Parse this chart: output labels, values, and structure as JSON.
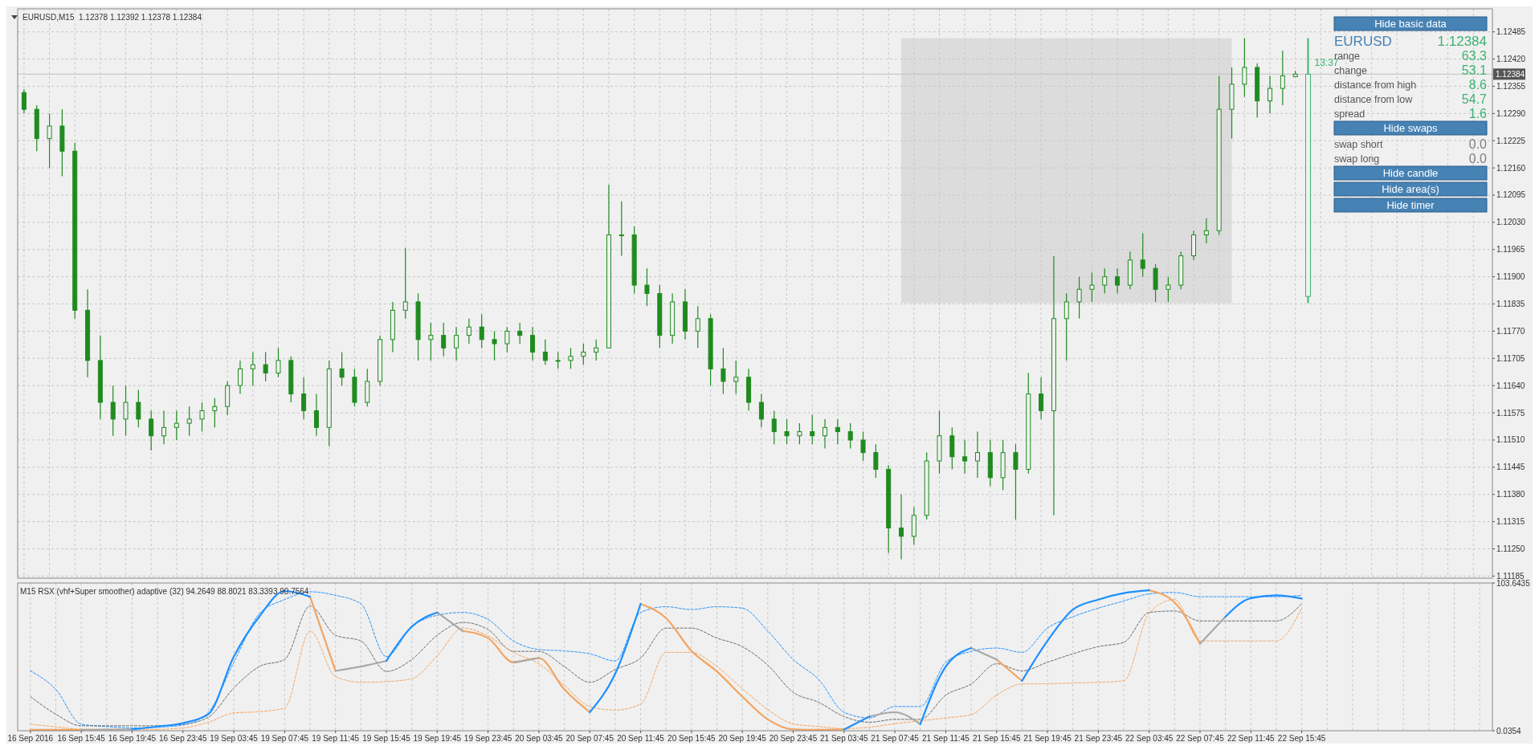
{
  "chart_data": [
    {
      "type": "candlestick",
      "title": "EURUSD,M15  1.12378 1.12392 1.12378 1.12384",
      "categories": [
        null,
        null,
        null,
        null,
        null,
        null,
        null,
        null,
        null,
        null,
        null,
        null,
        null,
        null,
        null,
        null,
        null,
        null,
        null,
        null,
        null,
        null,
        null,
        null,
        null,
        null,
        null,
        null,
        null,
        null,
        null,
        null,
        null,
        null,
        null,
        null,
        null,
        null,
        null,
        null,
        null,
        null,
        null,
        null,
        null,
        null,
        null,
        null,
        null,
        null,
        null,
        null,
        null,
        null,
        null,
        null,
        null,
        null,
        null,
        null,
        null,
        null,
        null,
        null,
        null,
        null,
        null,
        null,
        null,
        null,
        null,
        null,
        null,
        null,
        null,
        null,
        null,
        null,
        null,
        null,
        null,
        null,
        null,
        null,
        null,
        null,
        null,
        null,
        null,
        null,
        null,
        null,
        null,
        null,
        null,
        null,
        null,
        null,
        null,
        null,
        null,
        null,
        null,
        null,
        null,
        null,
        null,
        null,
        null,
        null,
        null,
        null,
        null,
        null,
        null,
        null
      ],
      "ylim": [
        1.1118,
        1.1254
      ],
      "yticks": [
        {
          "value": 1.11185,
          "label": "1.11185"
        },
        {
          "value": 1.1125,
          "label": "1.11250"
        },
        1.11315,
        {
          "value": 1.1138,
          "label": "1.11380"
        },
        1.11445,
        {
          "value": 1.1151,
          "label": "1.11510"
        },
        1.11575,
        {
          "value": 1.1164,
          "label": "1.11640"
        },
        1.11705,
        {
          "value": 1.1177,
          "label": "1.11770"
        },
        1.11835,
        {
          "value": 1.119,
          "label": "1.11900"
        },
        1.11965,
        {
          "value": 1.1203,
          "label": "1.12030"
        },
        1.12095,
        {
          "value": 1.1216,
          "label": "1.12160"
        },
        1.12225,
        {
          "value": 1.1229,
          "label": "1.12290"
        },
        1.12355,
        {
          "value": 1.1242,
          "label": "1.12420"
        },
        1.12485
      ],
      "grid": true,
      "tick_labels": "y",
      "ref_lines": [
        {
          "axis": "y",
          "value": 1.12384,
          "label": "1.12384",
          "color": "#c0c0c0"
        }
      ],
      "bands": [
        {
          "axis": "y",
          "from": 1.11837,
          "to": 1.1247,
          "color": "#dcdcdc"
        }
      ],
      "annotations": [
        "13:37"
      ],
      "series": [
        {
          "color": "#1f8b1f",
          "ohlc": [
            [
              1.1234,
              1.12348,
              1.1229,
              1.123
            ],
            [
              1.123,
              1.1231,
              1.122,
              1.1223
            ],
            [
              1.1223,
              1.1229,
              1.1216,
              1.1226
            ],
            [
              1.1226,
              1.123,
              1.1214,
              1.122
            ],
            [
              1.122,
              1.1222,
              1.118,
              1.1182
            ],
            [
              1.1182,
              1.1187,
              1.1166,
              1.117
            ],
            [
              1.117,
              1.1176,
              1.1156,
              1.116
            ],
            [
              1.116,
              1.1164,
              1.1152,
              1.1156
            ],
            [
              1.1156,
              1.1164,
              1.1152,
              1.116
            ],
            [
              1.116,
              1.1163,
              1.1154,
              1.1156
            ],
            [
              1.1156,
              1.1158,
              1.11485,
              1.1152
            ],
            [
              1.1152,
              1.1158,
              1.115,
              1.1154
            ],
            [
              1.1154,
              1.1158,
              1.1151,
              1.1155
            ],
            [
              1.1155,
              1.1159,
              1.1152,
              1.1156
            ],
            [
              1.1156,
              1.116,
              1.1153,
              1.1158
            ],
            [
              1.1158,
              1.1161,
              1.1154,
              1.1159
            ],
            [
              1.1159,
              1.1165,
              1.1157,
              1.1164
            ],
            [
              1.1164,
              1.117,
              1.1162,
              1.1168
            ],
            [
              1.1168,
              1.1172,
              1.1164,
              1.1169
            ],
            [
              1.1169,
              1.1172,
              1.1165,
              1.1167
            ],
            [
              1.1167,
              1.1173,
              1.1166,
              1.117
            ],
            [
              1.117,
              1.1171,
              1.116,
              1.1162
            ],
            [
              1.1162,
              1.1166,
              1.1156,
              1.1158
            ],
            [
              1.1158,
              1.1162,
              1.1152,
              1.1154
            ],
            [
              1.1154,
              1.117,
              1.11495,
              1.1168
            ],
            [
              1.1168,
              1.1172,
              1.1164,
              1.1166
            ],
            [
              1.1166,
              1.1168,
              1.1159,
              1.116
            ],
            [
              1.116,
              1.1168,
              1.1159,
              1.1165
            ],
            [
              1.1165,
              1.1176,
              1.1164,
              1.1175
            ],
            [
              1.1175,
              1.1184,
              1.1172,
              1.1182
            ],
            [
              1.1182,
              1.11969,
              1.118,
              1.1184
            ],
            [
              1.1184,
              1.1186,
              1.117,
              1.1175
            ],
            [
              1.1175,
              1.1179,
              1.117,
              1.1176
            ],
            [
              1.1176,
              1.1179,
              1.1171,
              1.1173
            ],
            [
              1.1173,
              1.1178,
              1.117,
              1.1176
            ],
            [
              1.1176,
              1.118,
              1.1174,
              1.1178
            ],
            [
              1.1178,
              1.1181,
              1.1173,
              1.1175
            ],
            [
              1.1175,
              1.1177,
              1.117,
              1.1174
            ],
            [
              1.1174,
              1.1178,
              1.1172,
              1.1177
            ],
            [
              1.1177,
              1.1179,
              1.1174,
              1.1176
            ],
            [
              1.1176,
              1.1178,
              1.117,
              1.1172
            ],
            [
              1.1172,
              1.1175,
              1.1169,
              1.117
            ],
            [
              1.117,
              1.1172,
              1.1168,
              1.117
            ],
            [
              1.117,
              1.1173,
              1.1168,
              1.1171
            ],
            [
              1.1171,
              1.1174,
              1.1169,
              1.1172
            ],
            [
              1.1172,
              1.1175,
              1.117,
              1.1173
            ],
            [
              1.1173,
              1.1212,
              1.1173,
              1.12
            ],
            [
              1.12,
              1.1208,
              1.1195,
              1.12
            ],
            [
              1.12,
              1.1202,
              1.1186,
              1.1188
            ],
            [
              1.1188,
              1.1192,
              1.1183,
              1.1186
            ],
            [
              1.1186,
              1.1188,
              1.1173,
              1.1176
            ],
            [
              1.1176,
              1.1186,
              1.1174,
              1.1184
            ],
            [
              1.1184,
              1.1187,
              1.1175,
              1.1177
            ],
            [
              1.1177,
              1.1183,
              1.1173,
              1.118
            ],
            [
              1.118,
              1.1181,
              1.1164,
              1.1168
            ],
            [
              1.1168,
              1.1173,
              1.1162,
              1.1165
            ],
            [
              1.1165,
              1.117,
              1.1162,
              1.1166
            ],
            [
              1.1166,
              1.1168,
              1.1158,
              1.116
            ],
            [
              1.116,
              1.1162,
              1.1154,
              1.1156
            ],
            [
              1.1156,
              1.1158,
              1.115,
              1.1153
            ],
            [
              1.1153,
              1.1156,
              1.115,
              1.1152
            ],
            [
              1.1152,
              1.1155,
              1.115,
              1.1153
            ],
            [
              1.1153,
              1.1157,
              1.115,
              1.1152
            ],
            [
              1.1152,
              1.1156,
              1.1149,
              1.1154
            ],
            [
              1.1154,
              1.1156,
              1.115,
              1.1153
            ],
            [
              1.1153,
              1.1155,
              1.1149,
              1.1151
            ],
            [
              1.1151,
              1.1153,
              1.1146,
              1.1148
            ],
            [
              1.1148,
              1.115,
              1.1142,
              1.1144
            ],
            [
              1.1144,
              1.1145,
              1.1124,
              1.113
            ],
            [
              1.113,
              1.1138,
              1.11225,
              1.1128
            ],
            [
              1.1128,
              1.1135,
              1.1126,
              1.1133
            ],
            [
              1.1133,
              1.1148,
              1.1132,
              1.1146
            ],
            [
              1.1146,
              1.1158,
              1.1143,
              1.1152
            ],
            [
              1.1152,
              1.1154,
              1.1144,
              1.1147
            ],
            [
              1.1147,
              1.1151,
              1.1143,
              1.1146
            ],
            [
              1.1146,
              1.1153,
              1.1142,
              1.1148
            ],
            [
              1.1148,
              1.1151,
              1.114,
              1.1142
            ],
            [
              1.1142,
              1.1151,
              1.1139,
              1.1148
            ],
            [
              1.1148,
              1.115,
              1.1132,
              1.1144
            ],
            [
              1.1144,
              1.1167,
              1.1143,
              1.1162
            ],
            [
              1.1162,
              1.1166,
              1.1156,
              1.1158
            ],
            [
              1.1158,
              1.11949,
              1.1133,
              1.118
            ],
            [
              1.118,
              1.1186,
              1.117,
              1.1184
            ],
            [
              1.1184,
              1.119,
              1.118,
              1.1187
            ],
            [
              1.1187,
              1.1191,
              1.1184,
              1.1188
            ],
            [
              1.1188,
              1.1192,
              1.1186,
              1.119
            ],
            [
              1.119,
              1.1192,
              1.1186,
              1.1188
            ],
            [
              1.1188,
              1.1196,
              1.1187,
              1.1194
            ],
            [
              1.1194,
              1.12004,
              1.119,
              1.1192
            ],
            [
              1.1192,
              1.1193,
              1.1184,
              1.1187
            ],
            [
              1.1187,
              1.119,
              1.1184,
              1.1188
            ],
            [
              1.1188,
              1.1196,
              1.1187,
              1.1195
            ],
            [
              1.1195,
              1.1201,
              1.1194,
              1.12
            ],
            [
              1.12,
              1.1204,
              1.1198,
              1.1201
            ],
            [
              1.1201,
              1.1238,
              1.12,
              1.123
            ],
            [
              1.123,
              1.124,
              1.1223,
              1.1236
            ],
            [
              1.1236,
              1.1247,
              1.1233,
              1.124
            ],
            [
              1.124,
              1.1241,
              1.1228,
              1.1232
            ],
            [
              1.1232,
              1.1238,
              1.1229,
              1.1235
            ],
            [
              1.1235,
              1.1244,
              1.1231,
              1.1238
            ],
            [
              1.12378,
              1.12392,
              1.12378,
              1.12384
            ],
            null,
            null,
            null,
            null,
            null,
            null,
            null,
            null,
            null,
            null,
            null,
            null,
            null,
            null,
            null
          ]
        },
        {
          "color": "#3cb371",
          "ohlc": [
            null,
            null,
            null,
            null,
            null,
            null,
            null,
            null,
            null,
            null,
            null,
            null,
            null,
            null,
            null,
            null,
            null,
            null,
            null,
            null,
            null,
            null,
            null,
            null,
            null,
            null,
            null,
            null,
            null,
            null,
            null,
            null,
            null,
            null,
            null,
            null,
            null,
            null,
            null,
            null,
            null,
            null,
            null,
            null,
            null,
            null,
            null,
            null,
            null,
            null,
            null,
            null,
            null,
            null,
            null,
            null,
            null,
            null,
            null,
            null,
            null,
            null,
            null,
            null,
            null,
            null,
            null,
            null,
            null,
            null,
            null,
            null,
            null,
            null,
            null,
            null,
            null,
            null,
            null,
            null,
            null,
            null,
            null,
            null,
            null,
            null,
            null,
            null,
            null,
            null,
            null,
            null,
            null,
            null,
            null,
            null,
            null,
            null,
            null,
            null,
            null,
            [
              1.11853,
              1.1247,
              1.11837,
              1.12384
            ],
            null,
            null,
            null,
            null,
            null,
            null,
            null,
            null,
            null,
            null,
            null,
            null,
            null,
            null
          ]
        }
      ]
    },
    {
      "type": "line",
      "title": "M15 RSX (vhf+Super smoother) adaptive (32) 94.2649 88.8021 83.3393 90.7564",
      "categories": [
        "16 Sep 2016",
        null,
        "16 Sep 15:45",
        null,
        "16 Sep 19:45",
        null,
        "16 Sep 23:45",
        null,
        "19 Sep 03:45",
        null,
        "19 Sep 07:45",
        null,
        "19 Sep 11:45",
        null,
        "19 Sep 15:45",
        null,
        "19 Sep 19:45",
        null,
        "19 Sep 23:45",
        null,
        "20 Sep 03:45",
        null,
        "20 Sep 07:45",
        null,
        "20 Sep 11:45",
        null,
        "20 Sep 15:45",
        null,
        "20 Sep 19:45",
        null,
        "20 Sep 23:45",
        null,
        "21 Sep 03:45",
        null,
        "21 Sep 07:45",
        null,
        "21 Sep 11:45",
        null,
        "21 Sep 15:45",
        null,
        "21 Sep 19:45",
        null,
        "21 Sep 23:45",
        null,
        "22 Sep 03:45",
        null,
        "22 Sep 07:45",
        null,
        "22 Sep 11:45",
        null,
        "22 Sep 15:45",
        null,
        null,
        null,
        null,
        null,
        null,
        null
      ],
      "ylim": [
        0.0354,
        103.6435
      ],
      "yticks": [
        0.0354,
        103.6435
      ],
      "grid": "x",
      "series": [
        {
          "color": "#1e90ff",
          "line_style": "dashed",
          "values": [
            42,
            29,
            4.6,
            3,
            2,
            2.5,
            4,
            13,
            48,
            82,
            92,
            97.5,
            95,
            89,
            52,
            73,
            81,
            83,
            78,
            63,
            57,
            56,
            54,
            49,
            83,
            87,
            85,
            87,
            86,
            70,
            50,
            36,
            13,
            9,
            17,
            17,
            48,
            55.7,
            58,
            55,
            72,
            80,
            86,
            91,
            96,
            97,
            94,
            94,
            94,
            94,
            95,
            null,
            null,
            null,
            null,
            null,
            null,
            null
          ]
        },
        {
          "color": "#696969",
          "line_style": "dashed",
          "values": [
            24,
            11.6,
            3.5,
            3.5,
            3.5,
            3.5,
            4.5,
            9.5,
            30,
            45,
            50,
            87.5,
            67,
            63,
            41.6,
            50,
            67,
            76,
            71,
            55.7,
            55.7,
            45,
            34,
            43,
            51,
            72,
            72,
            65,
            59,
            46,
            27,
            20,
            10,
            6,
            8,
            8,
            25,
            32.8,
            47,
            42,
            48,
            54,
            59,
            62,
            83,
            84,
            77,
            77,
            77,
            77,
            89,
            null,
            null,
            null,
            null,
            null,
            null,
            null
          ]
        },
        {
          "color": "#f4a460",
          "line_style": "dashed",
          "values": [
            4.6,
            2.8,
            1,
            1,
            1,
            1,
            2,
            6,
            12.5,
            13.4,
            16,
            70,
            38,
            34,
            34.5,
            36.5,
            52.5,
            72,
            66.5,
            54.8,
            47,
            32,
            17,
            14.5,
            18.7,
            55,
            55,
            45,
            29.5,
            15,
            4.8,
            3,
            1.5,
            2.5,
            5,
            7,
            9,
            11.3,
            25,
            32.8,
            33,
            33.5,
            34,
            35,
            82.5,
            92,
            63,
            63,
            63,
            63,
            86,
            null,
            null,
            null,
            null,
            null,
            null,
            null
          ]
        },
        {
          "color": "#f4a460",
          "line_style": "solid",
          "values": [
            0.7,
            0.7,
            0.7,
            null,
            null,
            null,
            null,
            null,
            null,
            null,
            null,
            94,
            42,
            null,
            null,
            null,
            null,
            70,
            65,
            48,
            51,
            29,
            13,
            null,
            89,
            79,
            56,
            41.6,
            24,
            8,
            1,
            0.7,
            0.9,
            null,
            null,
            null,
            null,
            null,
            50,
            35,
            null,
            null,
            null,
            null,
            98.5,
            90,
            61,
            null,
            null,
            null,
            null,
            null,
            null,
            null,
            null,
            null,
            null,
            null
          ]
        },
        {
          "color": "#a9a9a9",
          "line_style": "solid",
          "values": [
            null,
            null,
            0.7,
            0.8,
            1,
            null,
            null,
            null,
            null,
            null,
            null,
            null,
            42,
            45,
            49,
            null,
            83,
            70,
            null,
            48,
            51,
            null,
            null,
            null,
            null,
            null,
            null,
            null,
            null,
            null,
            null,
            null,
            null,
            10,
            13,
            4.6,
            null,
            58,
            50,
            null,
            null,
            null,
            null,
            null,
            null,
            null,
            61,
            80,
            null,
            null,
            null,
            null,
            null,
            null,
            null,
            null,
            null,
            null
          ]
        },
        {
          "color": "#1e90ff",
          "line_style": "solid",
          "values": [
            null,
            null,
            null,
            null,
            1,
            3,
            5.4,
            11.6,
            52,
            80,
            98,
            94,
            null,
            null,
            49,
            73,
            83,
            null,
            null,
            null,
            null,
            null,
            13,
            40,
            89,
            null,
            null,
            null,
            null,
            null,
            null,
            null,
            0.9,
            10,
            null,
            4.6,
            45,
            58,
            null,
            35,
            63,
            85,
            92,
            96.5,
            98.5,
            null,
            null,
            80,
            93,
            95,
            92.7,
            null,
            null,
            null,
            null,
            null,
            null,
            null
          ]
        }
      ]
    },
    {
      "type": "other",
      "color": "#4682b4",
      "annotations": [
        "Hide basic data",
        "Hide swaps",
        "Hide candle",
        "Hide area(s)",
        "Hide timer"
      ],
      "categories": [
        "EURUSD",
        "range",
        "change",
        "distance from high",
        "distance from low",
        "spread",
        "swap short",
        "swap long"
      ],
      "value_labels": [
        "1.12384",
        "63.3",
        "53.1",
        "8.6",
        "54.7",
        "1.6",
        "0.0",
        "0.0"
      ],
      "colors": [
        "#3cb371",
        "#3cb371",
        "#3cb371",
        "#3cb371",
        "#3cb371",
        "#3cb371",
        "#808080",
        "#808080"
      ]
    }
  ]
}
